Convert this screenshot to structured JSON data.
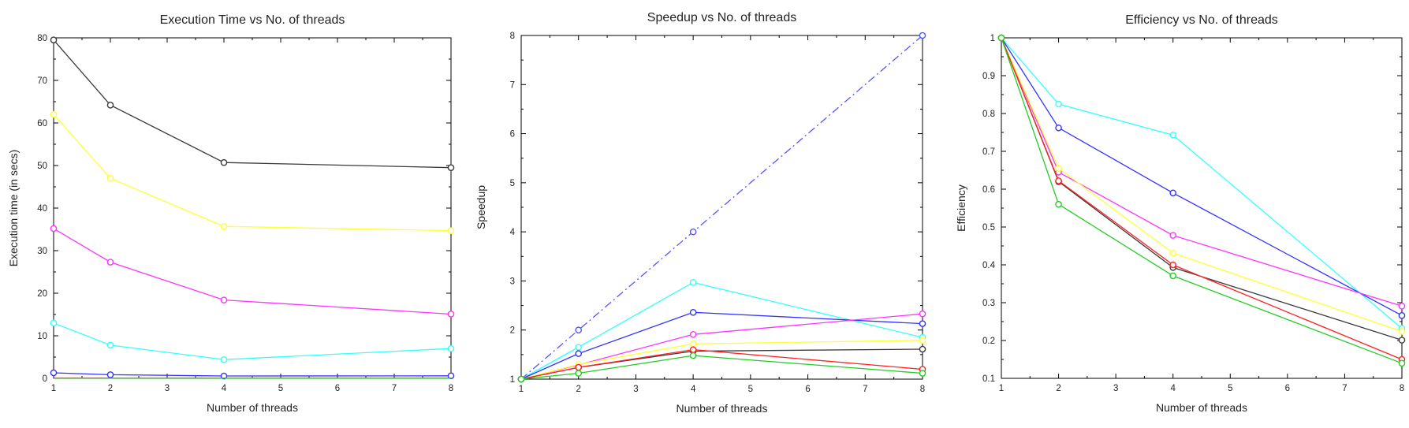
{
  "chart_data": [
    {
      "type": "line",
      "title": "Execution Time vs No. of threads",
      "xlabel": "Number of threads",
      "ylabel": "Execution time (in secs)",
      "xlim": [
        1,
        8
      ],
      "ylim": [
        0,
        80
      ],
      "xticks": [
        1,
        2,
        3,
        4,
        5,
        6,
        7,
        8
      ],
      "yticks": [
        0,
        10,
        20,
        30,
        40,
        50,
        60,
        70,
        80
      ],
      "grid": false,
      "x": [
        1,
        2,
        4,
        8
      ],
      "series": [
        {
          "color": "#3a3a3a",
          "marker": "circle",
          "values": [
            79.5,
            64.2,
            50.7,
            49.5
          ]
        },
        {
          "color": "#ffff33",
          "marker": "circle",
          "values": [
            62.0,
            47.0,
            35.7,
            34.7
          ]
        },
        {
          "color": "#ff33ff",
          "marker": "circle",
          "values": [
            35.2,
            27.3,
            18.4,
            15.1
          ]
        },
        {
          "color": "#33ffff",
          "marker": "circle",
          "values": [
            13.0,
            7.8,
            4.4,
            7.0
          ]
        },
        {
          "color": "#3333ff",
          "marker": "circle",
          "values": [
            1.3,
            0.85,
            0.55,
            0.6
          ]
        },
        {
          "color": "#ff2222",
          "marker": "none",
          "values": [
            0.1,
            0.08,
            0.07,
            0.07
          ]
        },
        {
          "color": "#22cc22",
          "marker": "none",
          "values": [
            0.05,
            0.05,
            0.04,
            0.04
          ]
        }
      ]
    },
    {
      "type": "line",
      "title": "Speedup vs No. of threads",
      "xlabel": "Number of threads",
      "ylabel": "Speedup",
      "xlim": [
        1,
        8
      ],
      "ylim": [
        1,
        8
      ],
      "xticks": [
        1,
        2,
        3,
        4,
        5,
        6,
        7,
        8
      ],
      "yticks": [
        1,
        2,
        3,
        4,
        5,
        6,
        7,
        8
      ],
      "grid": false,
      "x": [
        1,
        2,
        4,
        8
      ],
      "series": [
        {
          "color": "#5555ff",
          "marker": "circle",
          "dash": "dashdot",
          "values": [
            1,
            2,
            4,
            8
          ]
        },
        {
          "color": "#33ffff",
          "marker": "circle",
          "values": [
            1,
            1.65,
            2.97,
            1.85
          ]
        },
        {
          "color": "#3333ff",
          "marker": "circle",
          "values": [
            1,
            1.52,
            2.36,
            2.13
          ]
        },
        {
          "color": "#ff33ff",
          "marker": "circle",
          "values": [
            1,
            1.29,
            1.91,
            2.33
          ]
        },
        {
          "color": "#ffff33",
          "marker": "circle",
          "values": [
            1,
            1.3,
            1.72,
            1.79
          ]
        },
        {
          "color": "#3a3a3a",
          "marker": "circle",
          "values": [
            1,
            1.24,
            1.57,
            1.61
          ]
        },
        {
          "color": "#ff2222",
          "marker": "circle",
          "values": [
            1,
            1.24,
            1.6,
            1.2
          ]
        },
        {
          "color": "#22cc22",
          "marker": "circle",
          "values": [
            1,
            1.12,
            1.48,
            1.12
          ]
        }
      ]
    },
    {
      "type": "line",
      "title": "Efficiency vs No. of threads",
      "xlabel": "Number of threads",
      "ylabel": "Efficiency",
      "xlim": [
        1,
        8
      ],
      "ylim": [
        0.1,
        1
      ],
      "xticks": [
        1,
        2,
        3,
        4,
        5,
        6,
        7,
        8
      ],
      "yticks": [
        0.1,
        0.2,
        0.3,
        0.4,
        0.5,
        0.6,
        0.7,
        0.8,
        0.9,
        1
      ],
      "grid": false,
      "x": [
        1,
        2,
        4,
        8
      ],
      "series": [
        {
          "color": "#33ffff",
          "marker": "circle",
          "values": [
            1,
            0.825,
            0.743,
            0.232
          ]
        },
        {
          "color": "#3333ff",
          "marker": "circle",
          "values": [
            1,
            0.762,
            0.59,
            0.266
          ]
        },
        {
          "color": "#ff33ff",
          "marker": "circle",
          "values": [
            1,
            0.645,
            0.478,
            0.291
          ]
        },
        {
          "color": "#ffff33",
          "marker": "circle",
          "values": [
            1,
            0.655,
            0.431,
            0.224
          ]
        },
        {
          "color": "#3a3a3a",
          "marker": "circle",
          "values": [
            1,
            0.62,
            0.393,
            0.201
          ]
        },
        {
          "color": "#ff2222",
          "marker": "circle",
          "values": [
            1,
            0.622,
            0.4,
            0.15
          ]
        },
        {
          "color": "#22cc22",
          "marker": "circle",
          "values": [
            1,
            0.56,
            0.371,
            0.14
          ]
        }
      ]
    }
  ]
}
